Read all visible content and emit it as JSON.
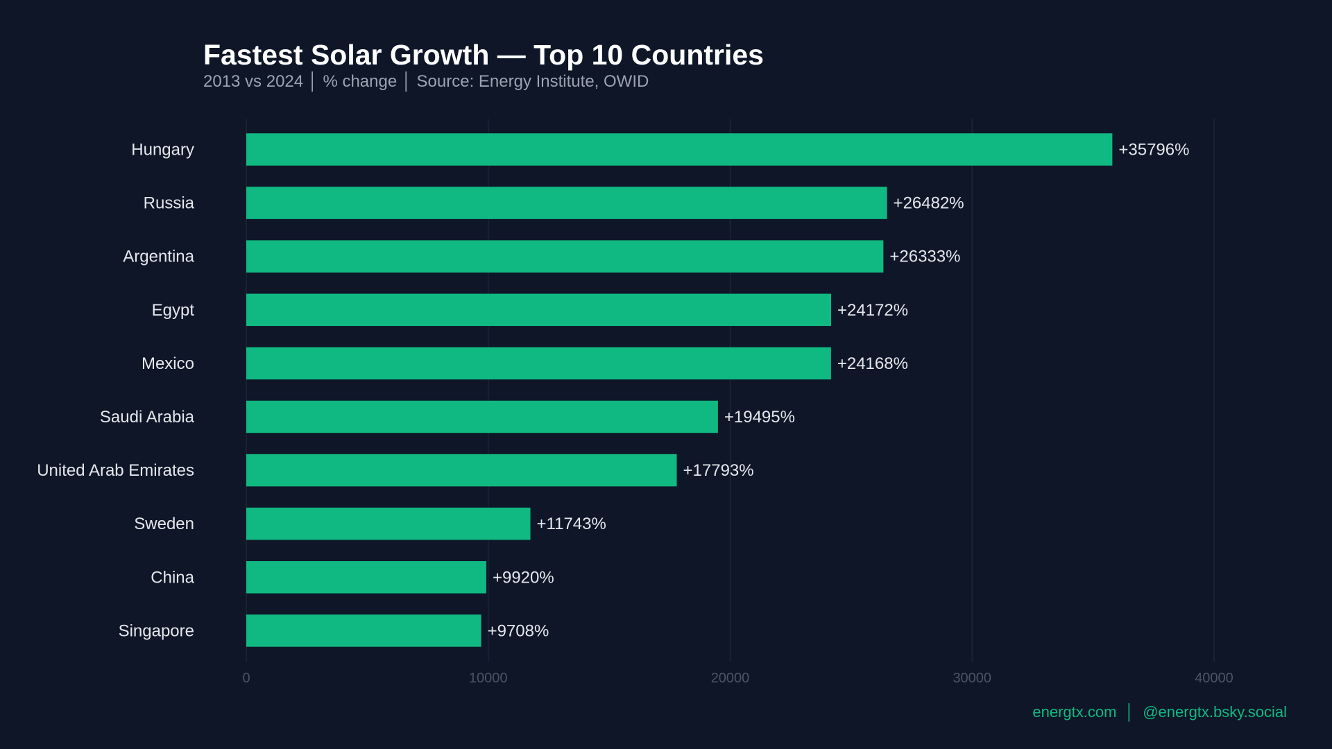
{
  "title": "Fastest Solar Growth — Top 10 Countries",
  "subtitle": "2013 vs 2024 │ % change │ Source: Energy Institute, OWID",
  "footer": {
    "site": "energtx.com",
    "separator": "│",
    "handle": "@energtx.bsky.social"
  },
  "colors": {
    "background": "#0e1628",
    "bar": "#10b981",
    "grid": "#1e2a3b",
    "tick_text": "#4b5563",
    "label_text": "#e5e7eb",
    "footer": "#10b981"
  },
  "chart_data": {
    "type": "bar",
    "orientation": "horizontal",
    "categories": [
      "Hungary",
      "Russia",
      "Argentina",
      "Egypt",
      "Mexico",
      "Saudi Arabia",
      "United Arab Emirates",
      "Sweden",
      "China",
      "Singapore"
    ],
    "values": [
      35796,
      26482,
      26333,
      24172,
      24168,
      19495,
      17793,
      11743,
      9920,
      9708
    ],
    "data_labels": [
      "+35796%",
      "+26482%",
      "+26333%",
      "+24172%",
      "+24168%",
      "+19495%",
      "+17793%",
      "+11743%",
      "+9920%",
      "+9708%"
    ],
    "xticks": [
      0,
      10000,
      20000,
      30000,
      40000
    ],
    "xtick_labels": [
      "0",
      "10000",
      "20000",
      "30000",
      "40000"
    ],
    "xlim": [
      0,
      40000
    ],
    "grid": "vertical",
    "xlabel": "",
    "ylabel": ""
  }
}
